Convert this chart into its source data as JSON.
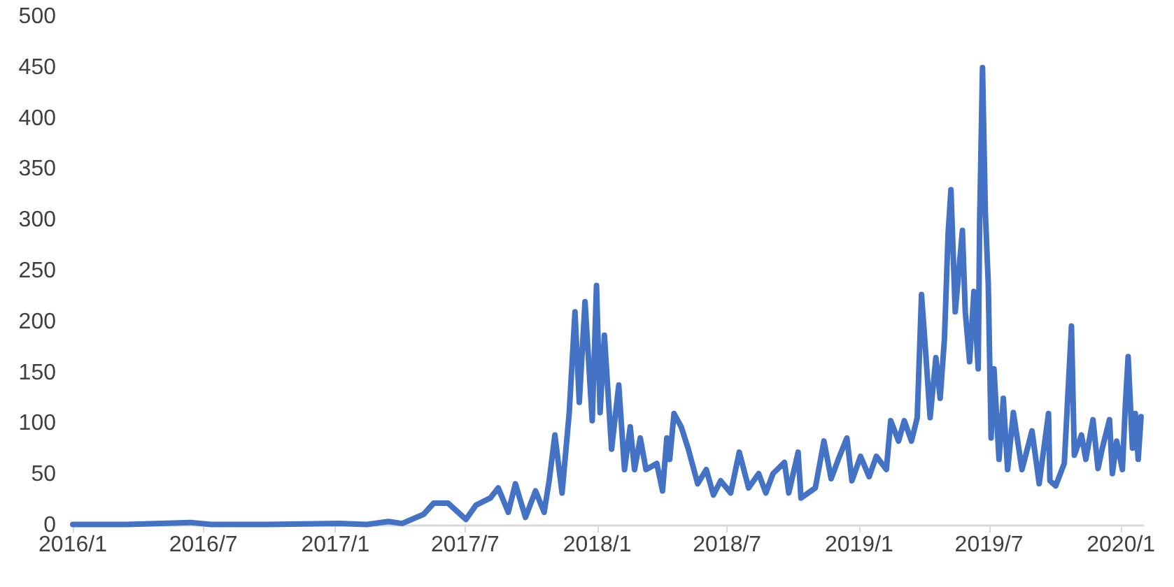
{
  "chart_data": {
    "type": "line",
    "grid": false,
    "marker": "none",
    "line_style": "solid",
    "x": [
      "2016-01-01",
      "2016-03-16",
      "2016-06-13",
      "2016-07-12",
      "2016-09-29",
      "2017-01-06",
      "2017-02-14",
      "2017-03-16",
      "2017-04-04",
      "2017-05-04",
      "2017-05-18",
      "2017-06-07",
      "2017-07-02",
      "2017-07-16",
      "2017-08-05",
      "2017-08-16",
      "2017-08-30",
      "2017-09-09",
      "2017-09-23",
      "2017-10-07",
      "2017-10-19",
      "2017-10-26",
      "2017-11-03",
      "2017-11-13",
      "2017-11-23",
      "2017-12-01",
      "2017-12-07",
      "2017-12-15",
      "2017-12-25",
      "2017-12-31",
      "2018-01-05",
      "2018-01-11",
      "2018-01-21",
      "2018-01-31",
      "2018-02-08",
      "2018-02-16",
      "2018-02-22",
      "2018-03-02",
      "2018-03-10",
      "2018-03-25",
      "2018-04-02",
      "2018-04-08",
      "2018-04-12",
      "2018-04-18",
      "2018-04-28",
      "2018-05-08",
      "2018-05-21",
      "2018-06-02",
      "2018-06-12",
      "2018-06-22",
      "2018-07-06",
      "2018-07-18",
      "2018-07-31",
      "2018-08-14",
      "2018-08-24",
      "2018-09-03",
      "2018-09-19",
      "2018-09-25",
      "2018-10-08",
      "2018-10-12",
      "2018-11-01",
      "2018-11-13",
      "2018-11-23",
      "2018-12-03",
      "2018-12-15",
      "2018-12-22",
      "2019-01-03",
      "2019-01-15",
      "2019-01-25",
      "2019-02-08",
      "2019-02-14",
      "2019-02-25",
      "2019-03-05",
      "2019-03-15",
      "2019-03-23",
      "2019-03-29",
      "2019-04-04",
      "2019-04-10",
      "2019-04-18",
      "2019-04-24",
      "2019-04-30",
      "2019-05-05",
      "2019-05-09",
      "2019-05-15",
      "2019-05-25",
      "2019-05-29",
      "2019-06-04",
      "2019-06-10",
      "2019-06-16",
      "2019-06-18",
      "2019-06-22",
      "2019-06-26",
      "2019-06-30",
      "2019-07-04",
      "2019-07-08",
      "2019-07-15",
      "2019-07-21",
      "2019-07-27",
      "2019-08-04",
      "2019-08-16",
      "2019-08-30",
      "2019-09-09",
      "2019-09-22",
      "2019-09-24",
      "2019-10-02",
      "2019-10-14",
      "2019-10-24",
      "2019-10-28",
      "2019-11-07",
      "2019-11-13",
      "2019-11-23",
      "2019-11-30",
      "2019-12-06",
      "2019-12-16",
      "2019-12-20",
      "2019-12-26",
      "2020-01-03",
      "2020-01-07",
      "2020-01-11",
      "2020-01-17",
      "2020-01-21",
      "2020-01-25",
      "2020-01-29"
    ],
    "series": [
      {
        "color": "#4472c4",
        "values": [
          1,
          1,
          3,
          1,
          1,
          2,
          1,
          4,
          2,
          11,
          22,
          22,
          6,
          20,
          27,
          37,
          13,
          41,
          8,
          34,
          13,
          44,
          89,
          32,
          111,
          210,
          121,
          220,
          103,
          236,
          111,
          187,
          75,
          138,
          55,
          97,
          55,
          86,
          55,
          61,
          34,
          86,
          65,
          110,
          97,
          75,
          41,
          55,
          30,
          44,
          32,
          72,
          37,
          51,
          32,
          51,
          62,
          32,
          72,
          27,
          37,
          83,
          46,
          65,
          86,
          44,
          68,
          48,
          68,
          55,
          103,
          83,
          103,
          83,
          106,
          227,
          168,
          106,
          165,
          125,
          184,
          286,
          330,
          210,
          290,
          210,
          161,
          230,
          154,
          297,
          450,
          307,
          238,
          86,
          154,
          65,
          125,
          55,
          111,
          55,
          93,
          41,
          110,
          44,
          39,
          61,
          196,
          69,
          89,
          65,
          104,
          56,
          76,
          104,
          51,
          83,
          55,
          117,
          166,
          76,
          110,
          65,
          107
        ]
      }
    ],
    "xlim": [
      "2016-01-01",
      "2020-02-01"
    ],
    "xticks": [
      {
        "value": "2016-01-01",
        "label": "2016/1"
      },
      {
        "value": "2016-07-01",
        "label": "2016/7"
      },
      {
        "value": "2017-01-01",
        "label": "2017/1"
      },
      {
        "value": "2017-07-01",
        "label": "2017/7"
      },
      {
        "value": "2018-01-01",
        "label": "2018/1"
      },
      {
        "value": "2018-07-01",
        "label": "2018/7"
      },
      {
        "value": "2019-01-01",
        "label": "2019/1"
      },
      {
        "value": "2019-07-01",
        "label": "2019/7"
      },
      {
        "value": "2020-01-01",
        "label": "2020/1"
      }
    ],
    "ylim": [
      0,
      500
    ],
    "yticks": [
      0,
      50,
      100,
      150,
      200,
      250,
      300,
      350,
      400,
      450,
      500
    ]
  }
}
